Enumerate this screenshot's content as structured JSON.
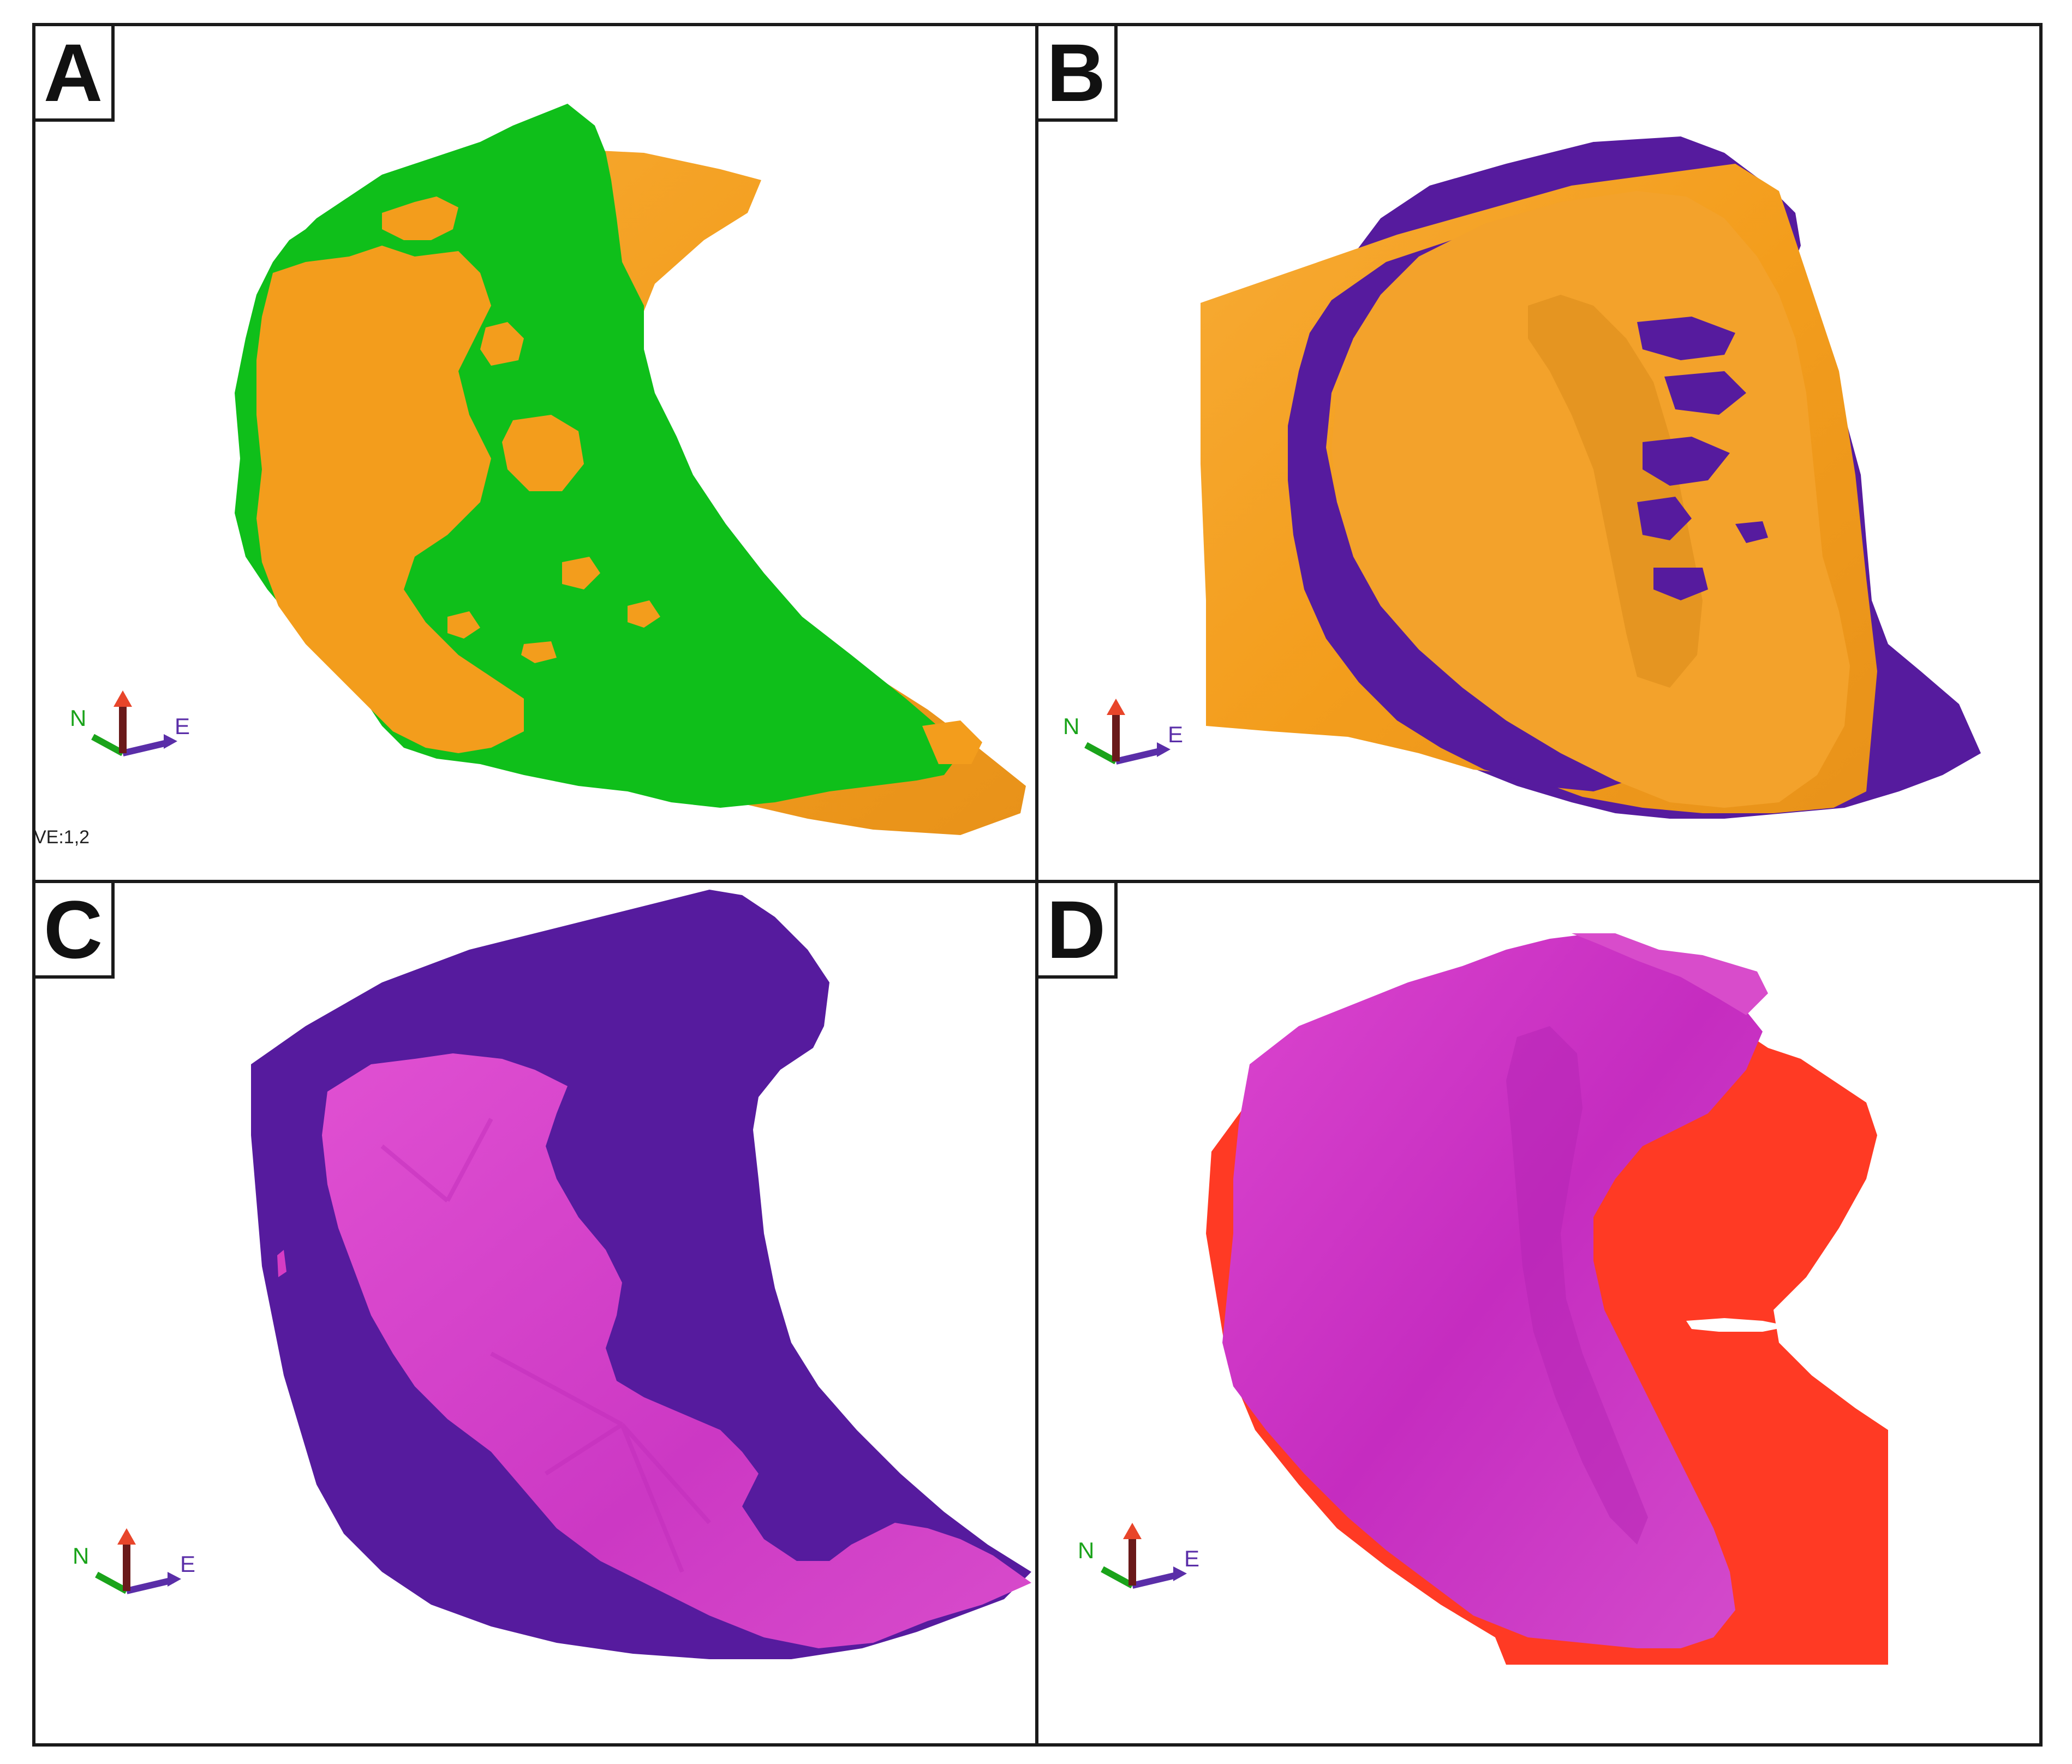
{
  "figure": {
    "colors": {
      "frame": "#1a1a1a",
      "background": "#ffffff",
      "orange": "#f5a023",
      "orange_dark": "#d9891a",
      "green": "#0fbf1a",
      "purple": "#561b9e",
      "magenta": "#d63cc4",
      "magenta_dark": "#b324b3",
      "red": "#ff3a24"
    },
    "panels": [
      {
        "id": "A",
        "letter": "A"
      },
      {
        "id": "B",
        "letter": "B"
      },
      {
        "id": "C",
        "letter": "C"
      },
      {
        "id": "D",
        "letter": "D"
      }
    ],
    "axis_labels": {
      "north": "N",
      "east": "E"
    },
    "axis_colors": {
      "north": "#1aa31a",
      "east": "#5a2ea8",
      "up_tip": "#e8452a",
      "up_stem": "#6a1a1a"
    },
    "ve_label": "VE:1,2"
  }
}
